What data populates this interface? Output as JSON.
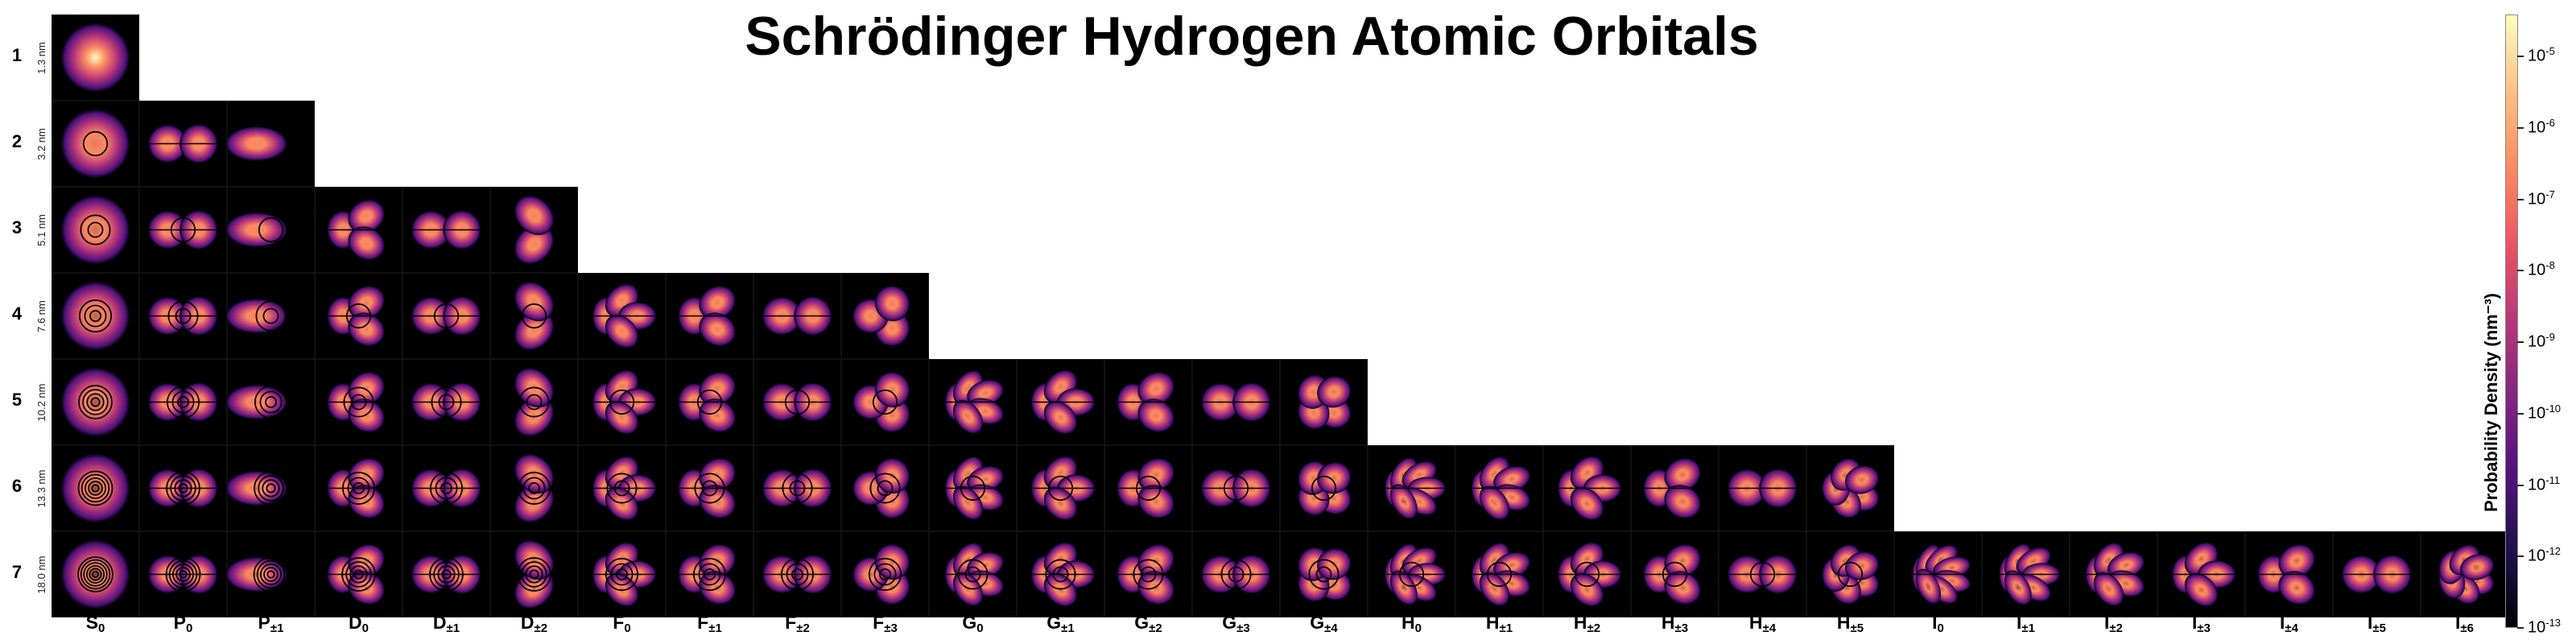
{
  "title": "Schrödinger Hydrogen Atomic Orbitals",
  "rows": [
    {
      "n": "1",
      "size": "1.3 nm",
      "count": 1
    },
    {
      "n": "2",
      "size": "3.2 nm",
      "count": 3
    },
    {
      "n": "3",
      "size": "5.1 nm",
      "count": 6
    },
    {
      "n": "4",
      "size": "7.6 nm",
      "count": 10
    },
    {
      "n": "5",
      "size": "10.2 nm",
      "count": 15
    },
    {
      "n": "6",
      "size": "13.3 nm",
      "count": 21
    },
    {
      "n": "7",
      "size": "18.0 nm",
      "count": 28
    }
  ],
  "columns": [
    {
      "letter": "S",
      "sub": "0",
      "l": 0,
      "m": 0
    },
    {
      "letter": "P",
      "sub": "0",
      "l": 1,
      "m": 0
    },
    {
      "letter": "P",
      "sub": "±1",
      "l": 1,
      "m": 1
    },
    {
      "letter": "D",
      "sub": "0",
      "l": 2,
      "m": 0
    },
    {
      "letter": "D",
      "sub": "±1",
      "l": 2,
      "m": 1
    },
    {
      "letter": "D",
      "sub": "±2",
      "l": 2,
      "m": 2
    },
    {
      "letter": "F",
      "sub": "0",
      "l": 3,
      "m": 0
    },
    {
      "letter": "F",
      "sub": "±1",
      "l": 3,
      "m": 1
    },
    {
      "letter": "F",
      "sub": "±2",
      "l": 3,
      "m": 2
    },
    {
      "letter": "F",
      "sub": "±3",
      "l": 3,
      "m": 3
    },
    {
      "letter": "G",
      "sub": "0",
      "l": 4,
      "m": 0
    },
    {
      "letter": "G",
      "sub": "±1",
      "l": 4,
      "m": 1
    },
    {
      "letter": "G",
      "sub": "±2",
      "l": 4,
      "m": 2
    },
    {
      "letter": "G",
      "sub": "±3",
      "l": 4,
      "m": 3
    },
    {
      "letter": "G",
      "sub": "±4",
      "l": 4,
      "m": 4
    },
    {
      "letter": "H",
      "sub": "0",
      "l": 5,
      "m": 0
    },
    {
      "letter": "H",
      "sub": "±1",
      "l": 5,
      "m": 1
    },
    {
      "letter": "H",
      "sub": "±2",
      "l": 5,
      "m": 2
    },
    {
      "letter": "H",
      "sub": "±3",
      "l": 5,
      "m": 3
    },
    {
      "letter": "H",
      "sub": "±4",
      "l": 5,
      "m": 4
    },
    {
      "letter": "H",
      "sub": "±5",
      "l": 5,
      "m": 5
    },
    {
      "letter": "I",
      "sub": "0",
      "l": 6,
      "m": 0
    },
    {
      "letter": "I",
      "sub": "±1",
      "l": 6,
      "m": 1
    },
    {
      "letter": "I",
      "sub": "±2",
      "l": 6,
      "m": 2
    },
    {
      "letter": "I",
      "sub": "±3",
      "l": 6,
      "m": 3
    },
    {
      "letter": "I",
      "sub": "±4",
      "l": 6,
      "m": 4
    },
    {
      "letter": "I",
      "sub": "±5",
      "l": 6,
      "m": 5
    },
    {
      "letter": "I",
      "sub": "±6",
      "l": 6,
      "m": 6
    }
  ],
  "colorbar": {
    "label": "Probability Density (nm⁻³)",
    "ticks": [
      "-5",
      "-6",
      "-7",
      "-8",
      "-9",
      "-10",
      "-11",
      "-12",
      "-13"
    ],
    "tick_base": "10",
    "colors": [
      "#fcfdbf",
      "#fe9f6d",
      "#de4968",
      "#8c2981",
      "#3b0f70",
      "#000004"
    ]
  },
  "colors": {
    "cell_bg": "#000000",
    "page_bg": "#ffffff",
    "title": "#000000"
  }
}
